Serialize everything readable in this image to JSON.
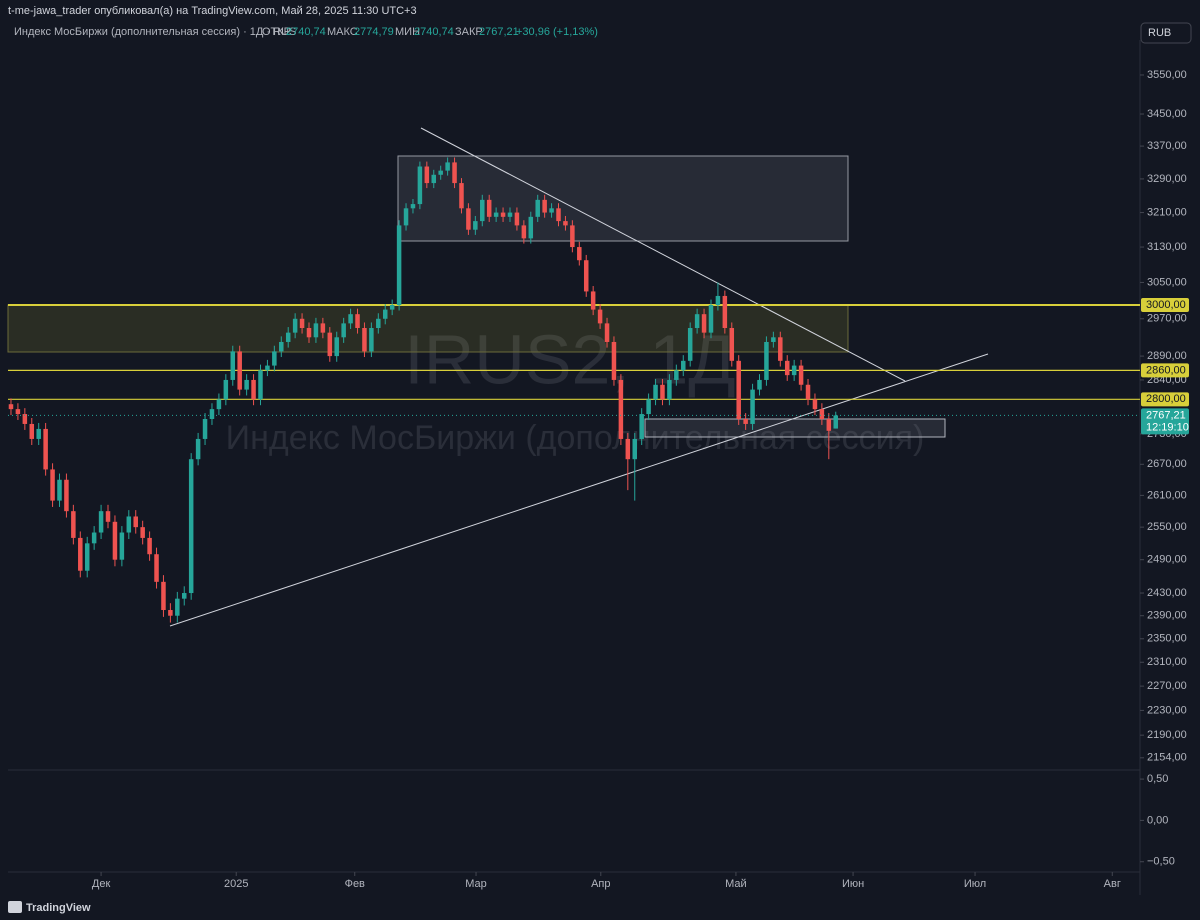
{
  "header": {
    "publisher": "t-me-jawa_trader опубликовал(а) на TradingView.com, Май 28, 2025 11:30 UTC+3",
    "symbol": "Индекс МосБиржи (дополнительная сессия) · 1Д · RUS",
    "open_key": "ОТКР",
    "open": "2740,74",
    "high_key": "МАКС",
    "high": "2774,79",
    "low_key": "МИН",
    "low": "2740,74",
    "close_key": "ЗАКР",
    "close": "2767,21",
    "change": "+30,96 (+1,13%)",
    "currency": "RUB"
  },
  "watermark": {
    "ticker": "IRUS2, 1Д",
    "name": "Индекс МосБиржи (дополнительная сессия)"
  },
  "footer": {
    "brand": "TradingView"
  },
  "chart_data": [
    {
      "type": "candlestick",
      "log": true,
      "up_color": "#26a69a",
      "down_color": "#ef5350",
      "xlim": [
        -0.43,
        162.9
      ],
      "xticks": [
        {
          "value": 13.0,
          "label": "Дек"
        },
        {
          "value": 32.5,
          "label": "2025"
        },
        {
          "value": 49.6,
          "label": "Фев"
        },
        {
          "value": 67.1,
          "label": "Мар"
        },
        {
          "value": 85.1,
          "label": "Апр"
        },
        {
          "value": 104.6,
          "label": "Май"
        },
        {
          "value": 121.5,
          "label": "Июн"
        },
        {
          "value": 139.1,
          "label": "Июл"
        },
        {
          "value": 158.9,
          "label": "Авг"
        }
      ],
      "ylim": [
        2138,
        3642
      ],
      "yticks": [
        {
          "value": 3550,
          "label": "3550,00"
        },
        {
          "value": 3450,
          "label": "3450,00"
        },
        {
          "value": 3370,
          "label": "3370,00"
        },
        {
          "value": 3290,
          "label": "3290,00"
        },
        {
          "value": 3210,
          "label": "3210,00"
        },
        {
          "value": 3130,
          "label": "3130,00"
        },
        {
          "value": 3050,
          "label": "3050,00"
        },
        {
          "value": 2970,
          "label": "2970,00"
        },
        {
          "value": 2890,
          "label": "2890,00"
        },
        {
          "value": 2840,
          "label": "2840,00"
        },
        {
          "value": 2730,
          "label": "2730,00"
        },
        {
          "value": 2670,
          "label": "2670,00"
        },
        {
          "value": 2610,
          "label": "2610,00"
        },
        {
          "value": 2550,
          "label": "2550,00"
        },
        {
          "value": 2490,
          "label": "2490,00"
        },
        {
          "value": 2430,
          "label": "2430,00"
        },
        {
          "value": 2390,
          "label": "2390,00"
        },
        {
          "value": 2350,
          "label": "2350,00"
        },
        {
          "value": 2310,
          "label": "2310,00"
        },
        {
          "value": 2270,
          "label": "2270,00"
        },
        {
          "value": 2230,
          "label": "2230,00"
        },
        {
          "value": 2190,
          "label": "2190,00"
        },
        {
          "value": 2154,
          "label": "2154,00"
        }
      ],
      "levels": [
        {
          "value": 3000,
          "label": "3000,00"
        },
        {
          "value": 2860,
          "label": "2860,00"
        },
        {
          "value": 2800,
          "label": "2800,00"
        }
      ],
      "level_color": "#d8cf3a",
      "last_price": {
        "value": 2767.21,
        "label": "2767,21",
        "countdown": "12:19:10"
      },
      "open": [
        2790,
        2780,
        2770,
        2750,
        2720,
        2740,
        2660,
        2600,
        2640,
        2580,
        2530,
        2470,
        2520,
        2540,
        2580,
        2560,
        2490,
        2540,
        2570,
        2550,
        2530,
        2500,
        2450,
        2400,
        2390,
        2420,
        2430,
        2680,
        2720,
        2760,
        2780,
        2800,
        2840,
        2900,
        2820,
        2840,
        2800,
        2860,
        2870,
        2900,
        2920,
        2940,
        2970,
        2950,
        2930,
        2960,
        2940,
        2890,
        2930,
        2960,
        2980,
        2950,
        2900,
        2950,
        2970,
        2990,
        3000,
        3180,
        3220,
        3230,
        3320,
        3280,
        3300,
        3310,
        3330,
        3280,
        3220,
        3170,
        3190,
        3240,
        3200,
        3210,
        3200,
        3210,
        3180,
        3150,
        3200,
        3240,
        3210,
        3220,
        3190,
        3180,
        3130,
        3100,
        3030,
        2990,
        2960,
        2920,
        2840,
        2720,
        2680,
        2720,
        2770,
        2800,
        2830,
        2800,
        2840,
        2860,
        2880,
        2950,
        2980,
        2940,
        3000,
        3020,
        2950,
        2880,
        2760,
        2750,
        2820,
        2840,
        2920,
        2930,
        2880,
        2850,
        2870,
        2830,
        2800,
        2780,
        2760,
        2740.74
      ],
      "high": [
        2802,
        2792,
        2782,
        2762,
        2752,
        2752,
        2672,
        2652,
        2652,
        2592,
        2542,
        2532,
        2552,
        2592,
        2592,
        2572,
        2552,
        2582,
        2582,
        2562,
        2542,
        2512,
        2462,
        2412,
        2432,
        2442,
        2692,
        2732,
        2772,
        2792,
        2812,
        2852,
        2912,
        2912,
        2852,
        2852,
        2872,
        2882,
        2912,
        2932,
        2952,
        2982,
        2982,
        2962,
        2972,
        2972,
        2952,
        2942,
        2972,
        2992,
        2992,
        2962,
        2962,
        2982,
        3002,
        3012,
        3192,
        3232,
        3242,
        3332,
        3332,
        3312,
        3322,
        3342,
        3342,
        3292,
        3232,
        3202,
        3252,
        3252,
        3222,
        3222,
        3222,
        3222,
        3192,
        3212,
        3252,
        3252,
        3232,
        3232,
        3202,
        3192,
        3142,
        3112,
        3042,
        3002,
        2972,
        2932,
        2852,
        2732,
        2732,
        2782,
        2812,
        2842,
        2842,
        2852,
        2872,
        2892,
        2962,
        2992,
        2992,
        3012,
        3050,
        3032,
        2962,
        2892,
        2772,
        2832,
        2852,
        2932,
        2942,
        2942,
        2892,
        2882,
        2882,
        2842,
        2812,
        2792,
        2772,
        2774.79
      ],
      "low": [
        2768,
        2758,
        2738,
        2708,
        2708,
        2648,
        2588,
        2588,
        2568,
        2518,
        2458,
        2458,
        2508,
        2528,
        2548,
        2478,
        2478,
        2528,
        2538,
        2518,
        2488,
        2438,
        2388,
        2378,
        2378,
        2408,
        2418,
        2668,
        2708,
        2748,
        2768,
        2788,
        2828,
        2808,
        2808,
        2788,
        2788,
        2848,
        2858,
        2888,
        2908,
        2928,
        2938,
        2918,
        2918,
        2928,
        2878,
        2878,
        2918,
        2948,
        2938,
        2888,
        2888,
        2938,
        2958,
        2978,
        2988,
        3168,
        3208,
        3218,
        3268,
        3268,
        3288,
        3298,
        3268,
        3208,
        3158,
        3158,
        3178,
        3188,
        3188,
        3188,
        3188,
        3168,
        3138,
        3138,
        3188,
        3198,
        3198,
        3178,
        3168,
        3118,
        3088,
        3018,
        2978,
        2948,
        2908,
        2828,
        2708,
        2620,
        2600,
        2708,
        2758,
        2788,
        2788,
        2788,
        2828,
        2848,
        2868,
        2938,
        2928,
        2928,
        2988,
        2938,
        2868,
        2748,
        2738,
        2738,
        2808,
        2828,
        2908,
        2868,
        2838,
        2838,
        2818,
        2788,
        2768,
        2748,
        2680,
        2740.74
      ],
      "close": [
        2780,
        2770,
        2750,
        2720,
        2740,
        2660,
        2600,
        2640,
        2580,
        2530,
        2470,
        2520,
        2540,
        2580,
        2560,
        2490,
        2540,
        2570,
        2550,
        2530,
        2500,
        2450,
        2400,
        2390,
        2420,
        2430,
        2680,
        2720,
        2760,
        2780,
        2800,
        2840,
        2900,
        2820,
        2840,
        2800,
        2860,
        2870,
        2900,
        2920,
        2940,
        2970,
        2950,
        2930,
        2960,
        2940,
        2890,
        2930,
        2960,
        2980,
        2950,
        2900,
        2950,
        2970,
        2990,
        3000,
        3180,
        3220,
        3230,
        3320,
        3280,
        3300,
        3310,
        3330,
        3280,
        3220,
        3170,
        3190,
        3240,
        3200,
        3210,
        3200,
        3210,
        3180,
        3150,
        3200,
        3240,
        3210,
        3220,
        3190,
        3180,
        3130,
        3100,
        3030,
        2990,
        2960,
        2920,
        2840,
        2720,
        2680,
        2720,
        2770,
        2800,
        2830,
        2800,
        2840,
        2860,
        2880,
        2950,
        2980,
        2940,
        3000,
        3020,
        2950,
        2880,
        2760,
        2750,
        2820,
        2840,
        2920,
        2930,
        2880,
        2850,
        2870,
        2830,
        2800,
        2780,
        2760,
        2736.25,
        2767.21
      ]
    },
    {
      "type": "pane",
      "ylim": [
        -0.6,
        0.61
      ],
      "yticks": [
        {
          "value": 0.5,
          "label": "0,50"
        },
        {
          "value": 0,
          "label": "0,00"
        },
        {
          "value": -0.5,
          "label": "−0,50"
        }
      ]
    }
  ]
}
